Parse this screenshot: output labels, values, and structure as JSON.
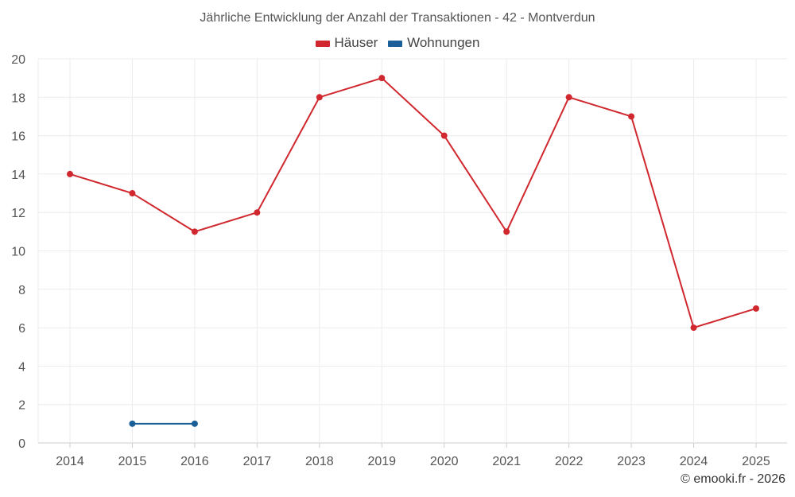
{
  "chart_data": {
    "type": "line",
    "title": "Jährliche Entwicklung der Anzahl der Transaktionen - 42 - Montverdun",
    "categories": [
      "2014",
      "2015",
      "2016",
      "2017",
      "2018",
      "2019",
      "2020",
      "2021",
      "2022",
      "2023",
      "2024",
      "2025"
    ],
    "series": [
      {
        "name": "Häuser",
        "color": "#d0282e",
        "values": [
          14,
          13,
          11,
          12,
          18,
          19,
          16,
          11,
          18,
          17,
          6,
          7
        ]
      },
      {
        "name": "Wohnungen",
        "color": "#1a5f98",
        "values": [
          null,
          1,
          1,
          null,
          null,
          null,
          null,
          null,
          null,
          null,
          null,
          null
        ]
      }
    ],
    "ylim": [
      0,
      20
    ],
    "yticks": [
      0,
      2,
      4,
      6,
      8,
      10,
      12,
      14,
      16,
      18,
      20
    ],
    "grid": true,
    "legend": "top-center"
  },
  "credit": "© emooki.fr - 2026"
}
